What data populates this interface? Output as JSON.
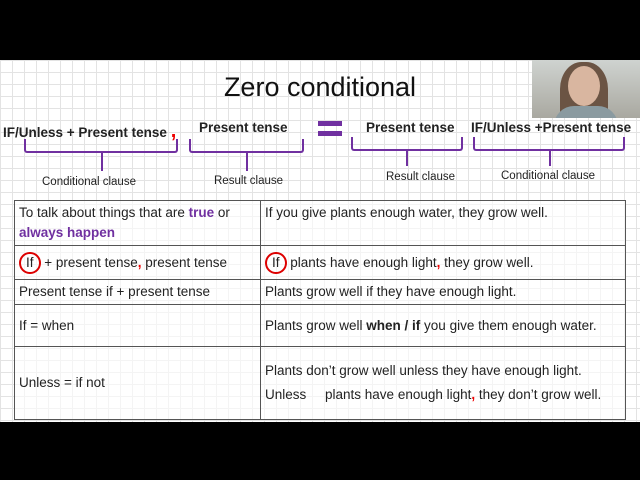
{
  "title": "Zero conditional",
  "formula": {
    "left_conditional": "IF/Unless + Present tense",
    "left_result": "Present tense",
    "right_result": "Present tense",
    "right_conditional": "IF/Unless +Present tense",
    "comma": ",",
    "labels": {
      "conditional_1": "Conditional clause",
      "result_1": "Result clause",
      "result_2": "Result clause",
      "conditional_2": "Conditional clause"
    }
  },
  "colors": {
    "accent": "#7030a0",
    "highlight": "#dd0000"
  },
  "table": {
    "r1": {
      "a1": "To talk about things that are ",
      "a2": "true",
      "a3": " or ",
      "a4": "always happen",
      "b": "If you give plants enough water, they grow well."
    },
    "r2": {
      "a_if": "If",
      "a1": " + present tense",
      "a2": ",",
      "a3": " present tense",
      "b_if": "If",
      "b1": " plants have enough light",
      "b2": ",",
      "b3": " they grow well."
    },
    "r3": {
      "a": "Present tense if + present tense",
      "b": "Plants grow well if they have enough light."
    },
    "r4": {
      "a": "If = when",
      "b1": "Plants grow well ",
      "b2": "when / if",
      "b3": " you give them enough water."
    },
    "r5": {
      "a": "Unless = if not",
      "b_line1": "Plants don’t grow well  unless  they have enough light.",
      "b2a": "Unless     plants have enough light",
      "b2b": ",",
      "b2c": " they don’t grow well."
    }
  }
}
